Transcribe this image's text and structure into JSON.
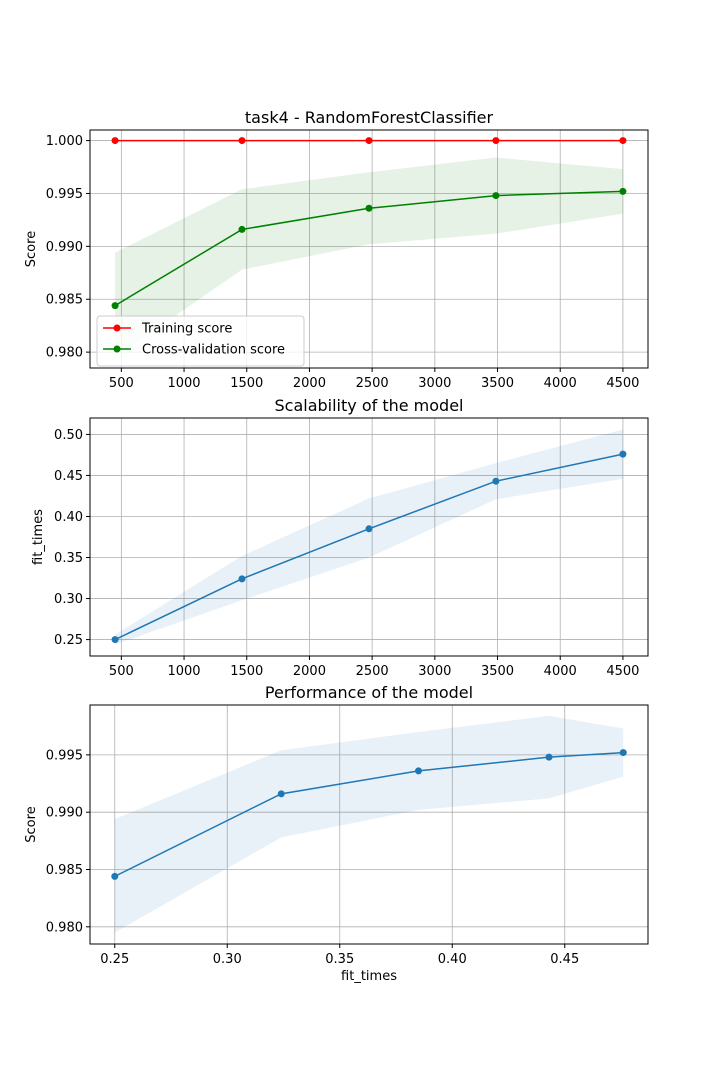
{
  "chart_data": [
    {
      "type": "line",
      "title": "task4 - RandomForestClassifier",
      "xlabel": "",
      "ylabel": "Score",
      "xlim": [
        250,
        4700
      ],
      "ylim": [
        0.9785,
        1.001
      ],
      "xticks": [
        500,
        1000,
        1500,
        2000,
        2500,
        3000,
        3500,
        4000,
        4500
      ],
      "yticks": [
        0.98,
        0.985,
        0.99,
        0.995,
        1.0
      ],
      "xtick_labels": [
        "500",
        "1000",
        "1500",
        "2000",
        "2500",
        "3000",
        "3500",
        "4000",
        "4500"
      ],
      "ytick_labels": [
        "0.980",
        "0.985",
        "0.990",
        "0.995",
        "1.000"
      ],
      "grid": true,
      "legend_position": "lower-left",
      "x": [
        450,
        1462,
        2475,
        3487,
        4500
      ],
      "series": [
        {
          "name": "Training score",
          "color": "#ff0000",
          "band_color": "#ff0000",
          "values": [
            1.0,
            1.0,
            1.0,
            1.0,
            1.0
          ],
          "lower": [
            1.0,
            1.0,
            1.0,
            1.0,
            1.0
          ],
          "upper": [
            1.0,
            1.0,
            1.0,
            1.0,
            1.0
          ]
        },
        {
          "name": "Cross-validation score",
          "color": "#008000",
          "band_color": "#008000",
          "values": [
            0.9844,
            0.9916,
            0.9936,
            0.9948,
            0.9952
          ],
          "lower": [
            0.9795,
            0.9878,
            0.9902,
            0.9912,
            0.9931
          ],
          "upper": [
            0.9894,
            0.9954,
            0.997,
            0.9984,
            0.9973
          ]
        }
      ]
    },
    {
      "type": "line",
      "title": "Scalability of the model",
      "xlabel": "",
      "ylabel": "fit_times",
      "xlim": [
        250,
        4700
      ],
      "ylim": [
        0.23,
        0.52
      ],
      "xticks": [
        500,
        1000,
        1500,
        2000,
        2500,
        3000,
        3500,
        4000,
        4500
      ],
      "yticks": [
        0.25,
        0.3,
        0.35,
        0.4,
        0.45,
        0.5
      ],
      "xtick_labels": [
        "500",
        "1000",
        "1500",
        "2000",
        "2500",
        "3000",
        "3500",
        "4000",
        "4500"
      ],
      "ytick_labels": [
        "0.25",
        "0.30",
        "0.35",
        "0.40",
        "0.45",
        "0.50"
      ],
      "grid": true,
      "x": [
        450,
        1462,
        2475,
        3487,
        4500
      ],
      "series": [
        {
          "name": "",
          "color": "#1f77b4",
          "band_color": "#1f77b4",
          "values": [
            0.25,
            0.324,
            0.385,
            0.443,
            0.476
          ],
          "lower": [
            0.244,
            0.298,
            0.35,
            0.421,
            0.446
          ],
          "upper": [
            0.256,
            0.352,
            0.422,
            0.465,
            0.506
          ]
        }
      ]
    },
    {
      "type": "line",
      "title": "Performance of the model",
      "xlabel": "fit_times",
      "ylabel": "Score",
      "xlim": [
        0.239,
        0.487
      ],
      "ylim": [
        0.9785,
        0.99935
      ],
      "xticks": [
        0.25,
        0.3,
        0.35,
        0.4,
        0.45
      ],
      "yticks": [
        0.98,
        0.985,
        0.99,
        0.995
      ],
      "xtick_labels": [
        "0.25",
        "0.30",
        "0.35",
        "0.40",
        "0.45"
      ],
      "ytick_labels": [
        "0.980",
        "0.985",
        "0.990",
        "0.995"
      ],
      "grid": true,
      "x": [
        0.25,
        0.324,
        0.385,
        0.443,
        0.476
      ],
      "series": [
        {
          "name": "",
          "color": "#1f77b4",
          "band_color": "#1f77b4",
          "values": [
            0.9844,
            0.9916,
            0.9936,
            0.9948,
            0.9952
          ],
          "lower": [
            0.9795,
            0.9878,
            0.9902,
            0.9912,
            0.9931
          ],
          "upper": [
            0.9894,
            0.9954,
            0.997,
            0.9984,
            0.9973
          ]
        }
      ]
    }
  ]
}
